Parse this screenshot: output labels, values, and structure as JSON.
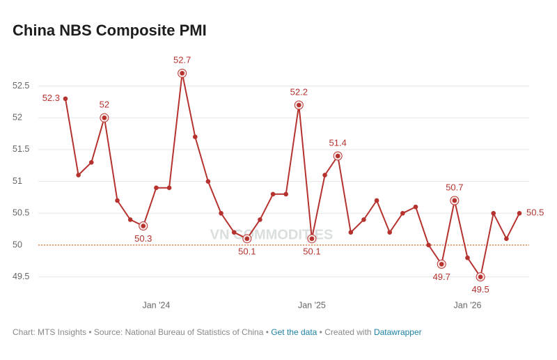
{
  "chart_data": {
    "type": "line",
    "title": "China NBS Composite PMI",
    "categories": [
      null,
      null,
      null,
      null,
      null,
      null,
      null,
      "Jan '24",
      null,
      null,
      null,
      null,
      null,
      null,
      null,
      null,
      null,
      null,
      null,
      "Jan '25",
      null,
      null,
      null,
      null,
      null,
      null,
      null,
      null,
      null,
      null,
      null,
      "Jan '26",
      null,
      null,
      null,
      null
    ],
    "series": [
      {
        "name": "Composite PMI",
        "color": "#b5322e",
        "values": [
          52.3,
          51.1,
          51.3,
          52,
          50.7,
          50.4,
          50.3,
          50.9,
          50.9,
          52.7,
          51.7,
          51.0,
          50.5,
          50.2,
          50.1,
          50.4,
          50.8,
          50.8,
          52.2,
          50.1,
          51.1,
          51.4,
          50.2,
          50.4,
          50.7,
          50.2,
          50.5,
          50.6,
          50.0,
          49.7,
          50.7,
          49.8,
          49.5,
          50.5,
          50.1,
          50.5
        ],
        "value_labels": [
          "52.3",
          null,
          null,
          "52",
          null,
          null,
          "50.3",
          null,
          null,
          "52.7",
          null,
          null,
          null,
          null,
          "50.1",
          null,
          null,
          null,
          "52.2",
          "50.1",
          null,
          "51.4",
          null,
          null,
          null,
          null,
          null,
          null,
          null,
          "49.7",
          "50.7",
          null,
          "49.5",
          null,
          null,
          "50.5"
        ]
      }
    ],
    "ylim": [
      49.25,
      52.85
    ],
    "yticks": [
      49.5,
      50,
      50.5,
      51,
      51.5,
      52,
      52.5
    ],
    "grid": true,
    "reference_line": 50,
    "reference_color": "#e07b39",
    "watermark": "VN COMMODITIES",
    "footer": {
      "credit": "Chart: MTS Insights",
      "separator": "•",
      "source": "Source: National Bureau of Statistics of China",
      "data_link": "Get the data",
      "created": "Created with",
      "tool": "Datawrapper"
    }
  }
}
